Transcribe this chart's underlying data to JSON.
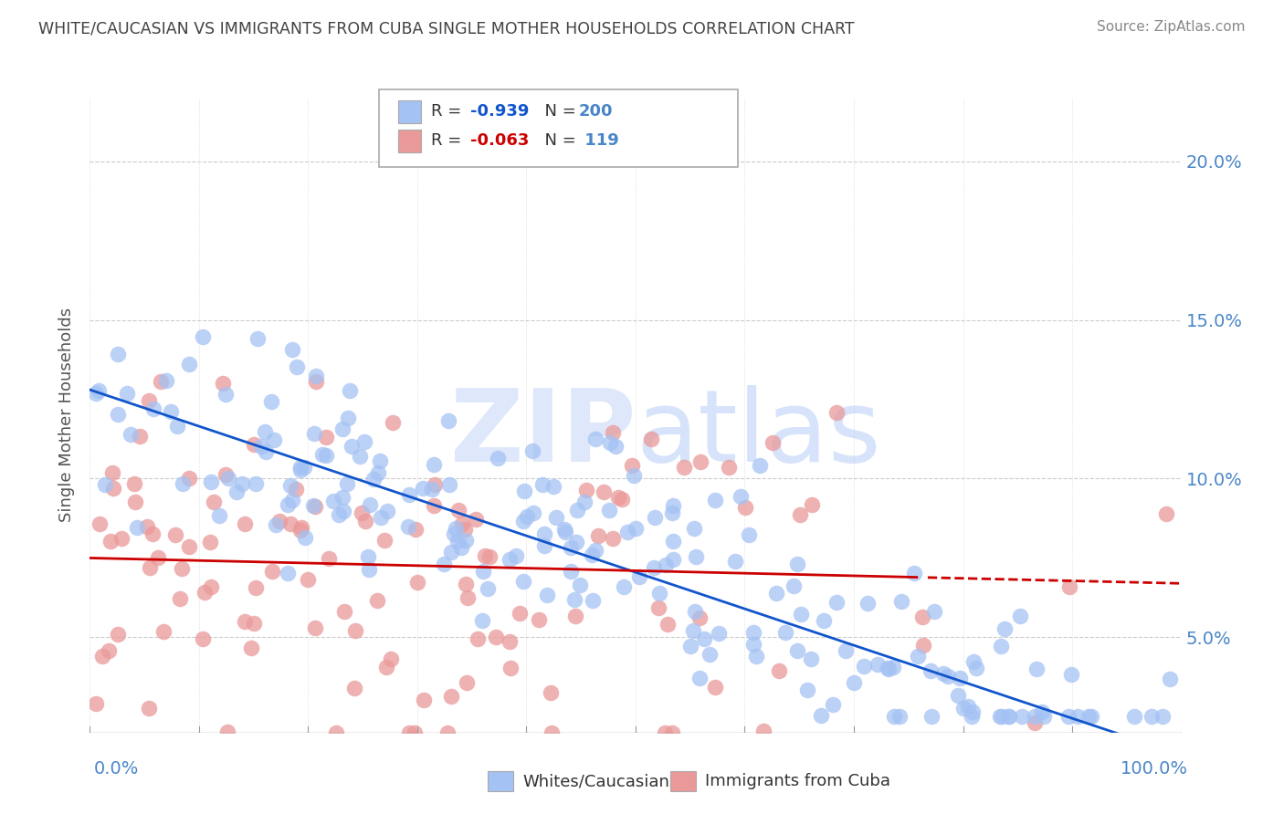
{
  "title": "WHITE/CAUCASIAN VS IMMIGRANTS FROM CUBA SINGLE MOTHER HOUSEHOLDS CORRELATION CHART",
  "source": "Source: ZipAtlas.com",
  "ylabel": "Single Mother Households",
  "watermark": "ZIPatlas",
  "blue_R": -0.939,
  "blue_N": 200,
  "pink_R": -0.063,
  "pink_N": 119,
  "blue_color": "#a4c2f4",
  "pink_color": "#ea9999",
  "blue_line_color": "#1155cc",
  "pink_line_color": "#cc0000",
  "xlim": [
    0,
    1.0
  ],
  "ylim": [
    0.02,
    0.22
  ],
  "yticks": [
    0.05,
    0.1,
    0.15,
    0.2
  ],
  "legend_label_blue": "Whites/Caucasians",
  "legend_label_pink": "Immigrants from Cuba",
  "title_color": "#434343",
  "tick_label_color": "#4a86c8",
  "grid_color": "#cccccc",
  "blue_slope": -0.115,
  "blue_intercept": 0.128,
  "pink_slope": -0.008,
  "pink_intercept": 0.075
}
